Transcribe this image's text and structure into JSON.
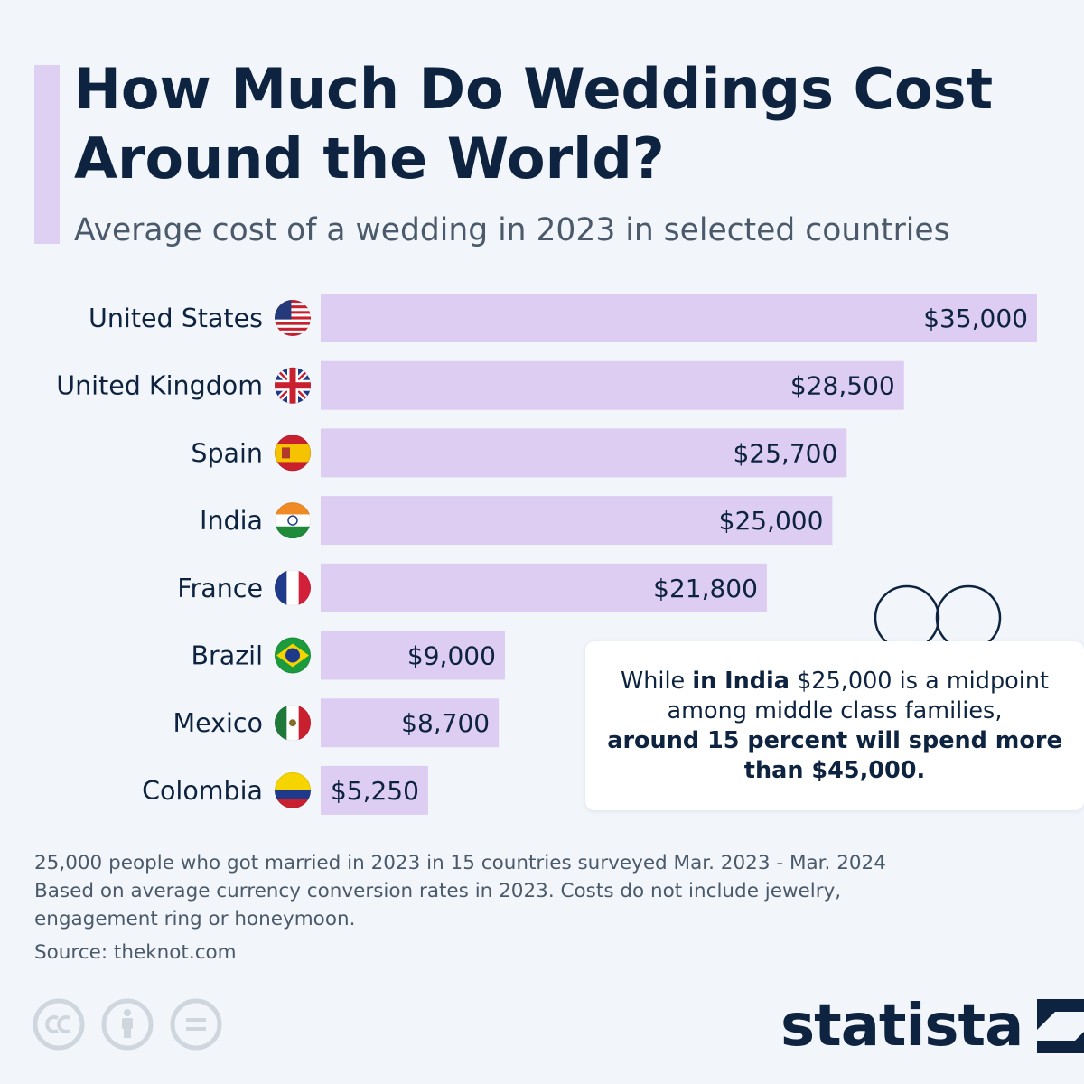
{
  "header": {
    "title_line1": "How Much Do Weddings Cost",
    "title_line2": "Around the World?",
    "subtitle": "Average cost of a wedding in 2023 in selected countries"
  },
  "chart_data": {
    "type": "bar",
    "orientation": "horizontal",
    "title": "How Much Do Weddings Cost Around the World?",
    "subtitle": "Average cost of a wedding in 2023 in selected countries",
    "xlabel": "",
    "ylabel": "",
    "xlim": [
      0,
      35000
    ],
    "grid": false,
    "categories": [
      "United States",
      "United Kingdom",
      "Spain",
      "India",
      "France",
      "Brazil",
      "Mexico",
      "Colombia"
    ],
    "values": [
      35000,
      28500,
      25700,
      25000,
      21800,
      9000,
      8700,
      5250
    ],
    "labels": [
      "$35,000",
      "$28,500",
      "$25,700",
      "$25,000",
      "$21,800",
      "$9,000",
      "$8,700",
      "$5,250"
    ],
    "flags": [
      "us-flag-icon",
      "uk-flag-icon",
      "spain-flag-icon",
      "india-flag-icon",
      "france-flag-icon",
      "brazil-flag-icon",
      "mexico-flag-icon",
      "colombia-flag-icon"
    ],
    "bar_color": "#ddcdf3"
  },
  "callout": {
    "text_1": "While ",
    "bold_1": "in India",
    "text_2": " $25,000 is a midpoint among middle class families,",
    "bold_2": "around 15 percent will spend more than $45,000."
  },
  "notes": {
    "line1": "25,000 people who got married in 2023 in 15 countries surveyed Mar. 2023 - Mar. 2024",
    "line2": "Based on average currency conversion rates in 2023. Costs do not include jewelry,",
    "line3": "engagement ring or honeymoon.",
    "source": "Source: theknot.com"
  },
  "brand": {
    "name": "statista",
    "license_icons": [
      "cc-icon",
      "attribution-icon",
      "no-derivatives-icon"
    ]
  },
  "colors": {
    "navy": "#0d2340",
    "accent": "#ddd0f3",
    "background": "#f2f6fb"
  }
}
